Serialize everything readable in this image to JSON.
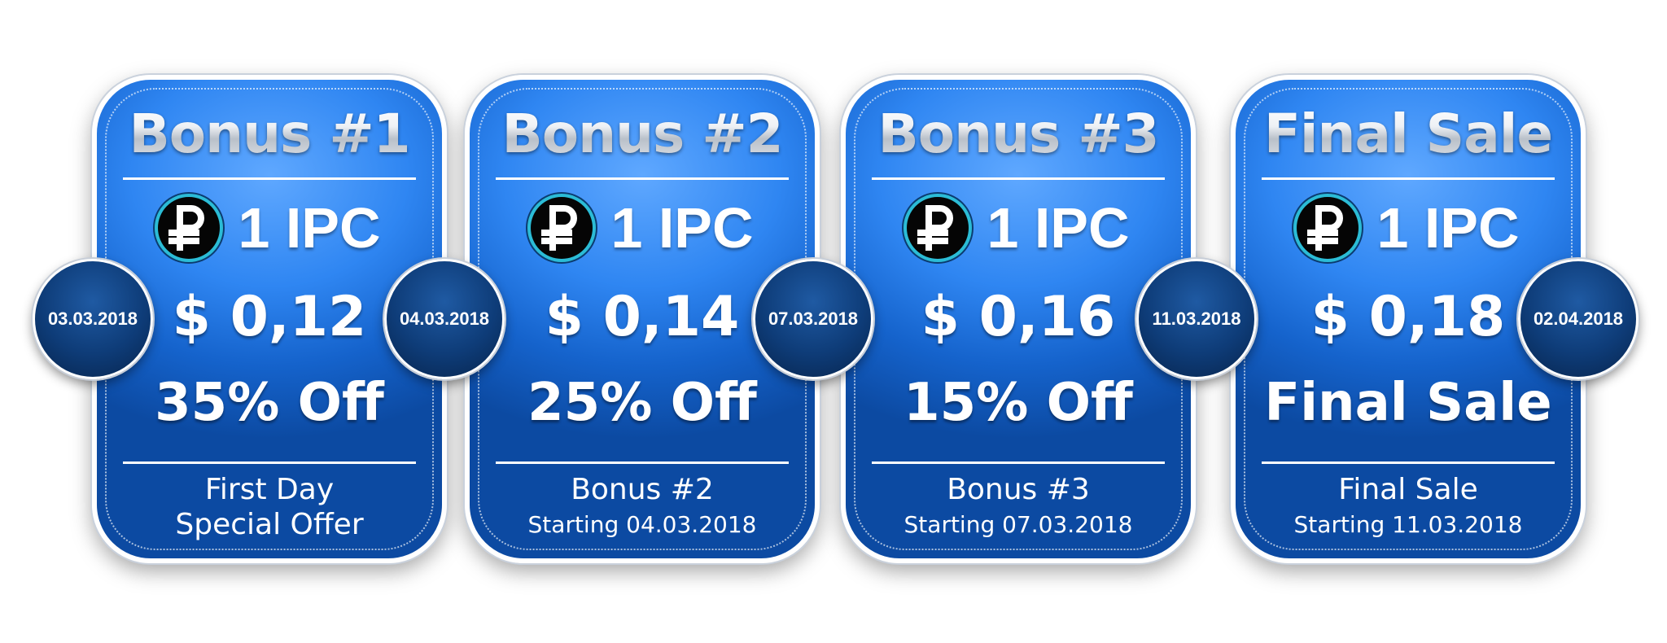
{
  "colors": {
    "card_gradient_light": "#5fa8ff",
    "card_gradient_dark": "#0c4aa2",
    "badge_dark": "#0e3c78",
    "coin_ring": "#2bbcd6",
    "background": "#ffffff"
  },
  "coin_icon": "ruble-coin-icon",
  "cards": [
    {
      "title": "Bonus #1",
      "amount": "1 IPC",
      "price": "$ 0,12",
      "discount": "35% Off",
      "footer_line1": "First Day",
      "footer_line2": "Special Offer",
      "date": "03.03.2018"
    },
    {
      "title": "Bonus #2",
      "amount": "1 IPC",
      "price": "$ 0,14",
      "discount": "25% Off",
      "footer_line1": "Bonus #2",
      "footer_line2": "Starting 04.03.2018",
      "date": "04.03.2018"
    },
    {
      "title": "Bonus #3",
      "amount": "1 IPC",
      "price": "$ 0,16",
      "discount": "15% Off",
      "footer_line1": "Bonus #3",
      "footer_line2": "Starting 07.03.2018",
      "date": "07.03.2018"
    },
    {
      "title": "Final Sale",
      "amount": "1 IPC",
      "price": "$ 0,18",
      "discount": "Final Sale",
      "footer_line1": "Final Sale",
      "footer_line2": "Starting 11.03.2018",
      "date": "11.03.2018"
    }
  ],
  "end_date": "02.04.2018"
}
